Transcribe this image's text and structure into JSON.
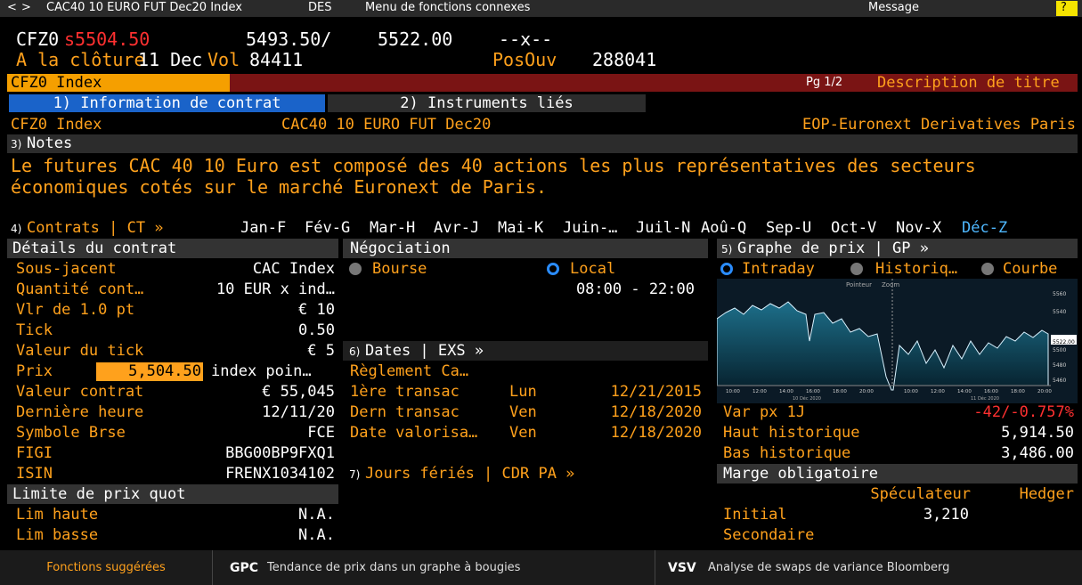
{
  "toolbar": {
    "back": "<",
    "forward": ">",
    "security": "CAC40 10 EURO FUT Dec20 Index",
    "function": "DES",
    "menu": "Menu de fonctions connexes",
    "message": "Message",
    "help": "?"
  },
  "quote": {
    "ticker": "CFZ0",
    "last": "s5504.50",
    "bid": "5493.50/",
    "ask": "5522.00",
    "change": "--x--",
    "close_label": "A la clôture",
    "close_date": "11 Dec",
    "vol_label": "Vol",
    "vol": "84411",
    "oi_label": "PosOuv",
    "oi": "288041"
  },
  "header": {
    "security": "CFZ0 Index",
    "page": "Pg 1/2",
    "title": "Description de titre"
  },
  "tabs": [
    "1) Information de contrat",
    "2) Instruments liés"
  ],
  "ident": [
    "CFZ0 Index",
    "CAC40 10 EURO FUT Dec20",
    "EOP-Euronext Derivatives Paris"
  ],
  "notes": {
    "number": "3)",
    "heading": "Notes",
    "lines": [
      "Le futures CAC 40 10 Euro est composé des 40 actions  les plus représentatives des secteurs",
      "économiques cotés sur le marché Euronext de Paris."
    ]
  },
  "contracts": {
    "number": "4)",
    "heading": "Contrats | CT »",
    "months": [
      "Jan-F",
      "Fév-G",
      "Mar-H",
      "Avr-J",
      "Mai-K",
      "Juin-…",
      "Juil-N",
      "Aoû-Q",
      "Sep-U",
      "Oct-V",
      "Nov-X",
      "Déc-Z"
    ]
  },
  "details": {
    "heading": "Détails du contrat",
    "rows": [
      [
        "Sous-jacent",
        "CAC Index"
      ],
      [
        "Quantité cont…",
        "10 EUR x ind…"
      ],
      [
        "Vlr de 1.0 pt",
        "€ 10"
      ],
      [
        "Tick",
        "0.50"
      ],
      [
        "Valeur du tick",
        "€ 5"
      ],
      [
        "Prix",
        "5,504.50",
        "index poin…"
      ],
      [
        "Valeur contrat",
        "€ 55,045"
      ],
      [
        "Dernière heure",
        "12/11/20"
      ],
      [
        "Symbole Brse",
        "FCE"
      ],
      [
        "FIGI",
        "BBG00BP9FXQ1"
      ],
      [
        "ISIN",
        "FRENX1034102"
      ]
    ]
  },
  "limits": {
    "heading": "Limite de prix quot",
    "rows": [
      [
        "Lim haute",
        "N.A."
      ],
      [
        "Lim basse",
        "N.A."
      ]
    ]
  },
  "negotiation": {
    "heading": "Négociation",
    "options": [
      "Bourse",
      "Local"
    ],
    "hours": "08:00 - 22:00"
  },
  "dates": {
    "number": "6)",
    "heading": "Dates | EXS »",
    "settlement": "Règlement Ca…",
    "rows": [
      [
        "1ère transac",
        "Lun",
        "12/21/2015"
      ],
      [
        "Dern transac",
        "Ven",
        "12/18/2020"
      ],
      [
        "Date valorisa…",
        "Ven",
        "12/18/2020"
      ]
    ]
  },
  "holidays": {
    "number": "7)",
    "heading": "Jours fériés | CDR PA »"
  },
  "graph": {
    "number": "5)",
    "heading": "Graphe de prix | GP »",
    "options": [
      "Intraday",
      "Historiq…",
      "Courbe"
    ],
    "tools": [
      "Pointeur",
      "Zoom"
    ],
    "yticks": [
      "5560",
      "5540",
      "5522.00",
      "5500",
      "5480",
      "5460"
    ],
    "xticks": [
      "10:00",
      "12:00",
      "14:00",
      "16:00",
      "18:00",
      "20:00",
      "10:00",
      "12:00",
      "14:00",
      "16:00",
      "18:00",
      "20:00"
    ],
    "days": [
      "10 Déc 2020",
      "11 Déc 2020"
    ]
  },
  "stats": [
    [
      "Var px 1J",
      "-42/-0.757%"
    ],
    [
      "Haut historique",
      "5,914.50"
    ],
    [
      "Bas historique",
      "3,486.00"
    ]
  ],
  "margin": {
    "heading": "Marge obligatoire",
    "columns": [
      "Spéculateur",
      "Hedger"
    ],
    "rows": [
      {
        "label": "Initial",
        "speculator": "3,210"
      },
      {
        "label": "Secondaire"
      }
    ]
  },
  "footer": {
    "label": "Fonctions suggérées",
    "items": [
      {
        "code": "GPC",
        "text": "Tendance de prix dans un graphe à bougies"
      },
      {
        "code": "VSV",
        "text": "Analyse de swaps de variance Bloomberg"
      }
    ]
  }
}
